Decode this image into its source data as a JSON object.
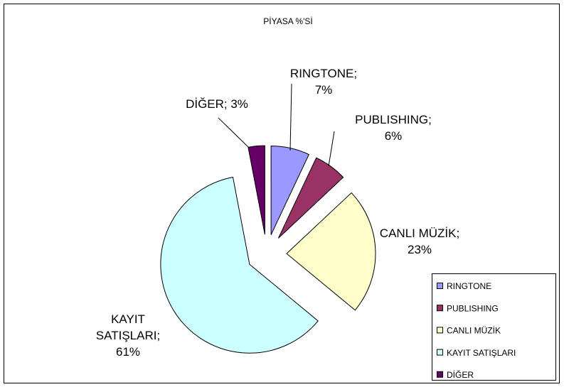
{
  "chart_data": {
    "type": "pie",
    "title": "PİYASA %'Sİ",
    "categories": [
      "RINGTONE",
      "PUBLISHING",
      "CANLI MÜZİK",
      "KAYIT SATIŞLARI",
      "DİĞER"
    ],
    "values": [
      7,
      6,
      23,
      61,
      3
    ],
    "value_labels": [
      "RINGTONE; 7%",
      "PUBLISHING; 6%",
      "CANLI MÜZİK; 23%",
      "KAYIT SATIŞLARI; 61%",
      "DİĞER; 3%"
    ],
    "colors": [
      "#9999ff",
      "#993366",
      "#ffffcc",
      "#ccffff",
      "#660066"
    ],
    "exploded": true,
    "legend": "lower right"
  }
}
